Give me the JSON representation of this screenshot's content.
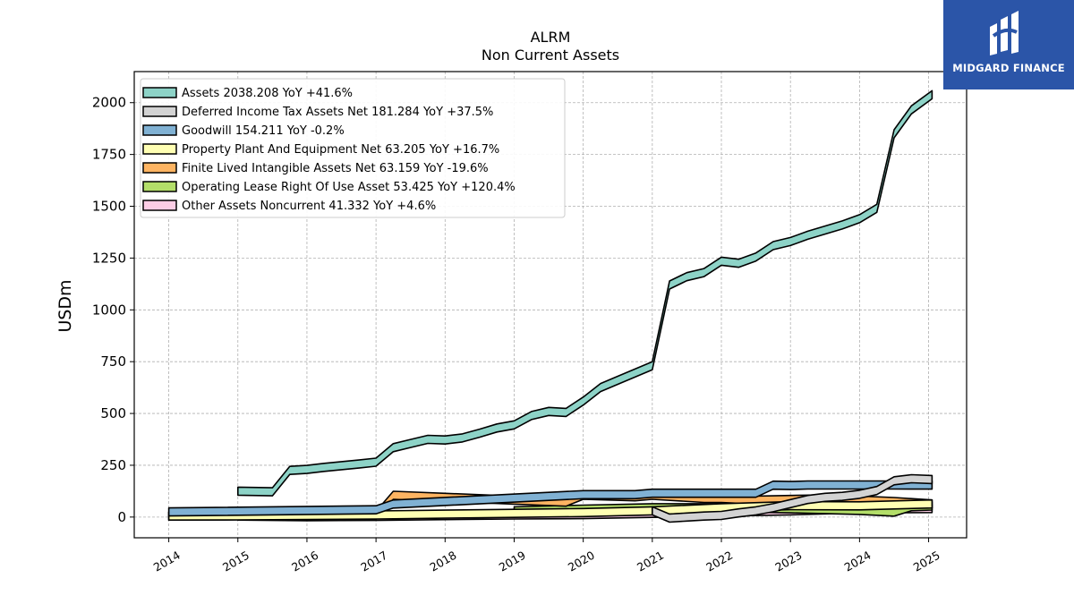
{
  "chart_data": {
    "type": "area",
    "title": "ALRM",
    "subtitle": "Non Current  Assets",
    "ylabel": "USDm",
    "xlabel": "",
    "ylim": [
      -100,
      2150
    ],
    "xlim": [
      2013.5,
      2025.55
    ],
    "yticks": [
      0,
      250,
      500,
      750,
      1000,
      1250,
      1500,
      1750,
      2000
    ],
    "xticks": [
      2014,
      2015,
      2016,
      2017,
      2018,
      2019,
      2020,
      2021,
      2022,
      2023,
      2024,
      2025
    ],
    "grid": true,
    "legend_position": "upper-left",
    "series": [
      {
        "name": "Assets",
        "legend": "Assets  2038.208 YoY +41.6%",
        "color": "#8dd3c7",
        "x": [
          2015.0,
          2015.5,
          2015.75,
          2016.0,
          2016.25,
          2016.5,
          2016.75,
          2017.0,
          2017.25,
          2017.5,
          2017.75,
          2018.0,
          2018.25,
          2018.5,
          2018.75,
          2019.0,
          2019.25,
          2019.5,
          2019.75,
          2020.0,
          2020.25,
          2020.5,
          2020.75,
          2021.0,
          2021.25,
          2021.5,
          2021.75,
          2022.0,
          2022.25,
          2022.5,
          2022.75,
          2023.0,
          2023.25,
          2023.5,
          2023.75,
          2024.0,
          2024.25,
          2024.5,
          2024.75,
          2025.05
        ],
        "y": [
          125,
          122,
          225,
          230,
          240,
          248,
          256,
          265,
          335,
          355,
          375,
          372,
          382,
          405,
          430,
          445,
          490,
          510,
          505,
          560,
          625,
          660,
          695,
          730,
          1120,
          1160,
          1180,
          1235,
          1225,
          1255,
          1310,
          1330,
          1360,
          1385,
          1410,
          1440,
          1490,
          1850,
          1965,
          2038.208
        ]
      },
      {
        "name": "Deferred Income Tax Assets Net",
        "legend": "Deferred Income Tax Assets Net  181.284 YoY +37.5%",
        "color": "#d3d3d3",
        "x": [
          2021.0,
          2021.25,
          2021.5,
          2021.75,
          2022.0,
          2022.25,
          2022.5,
          2022.75,
          2023.0,
          2023.25,
          2023.5,
          2023.75,
          2024.0,
          2024.25,
          2024.5,
          2024.75,
          2025.05
        ],
        "y": [
          30,
          -5,
          0,
          5,
          8,
          20,
          30,
          45,
          65,
          85,
          95,
          100,
          110,
          128,
          175,
          185,
          181.284
        ]
      },
      {
        "name": "Goodwill",
        "legend": "Goodwill  154.211 YoY -0.2%",
        "color": "#80b1d3",
        "x": [
          2014.0,
          2017.0,
          2017.25,
          2020.0,
          2020.75,
          2021.0,
          2021.5,
          2022.0,
          2022.5,
          2022.75,
          2023.0,
          2023.25,
          2023.5,
          2024.0,
          2024.5,
          2025.05
        ],
        "y": [
          25,
          35,
          63,
          108,
          108,
          115,
          115,
          115,
          115,
          154,
          152,
          155,
          155,
          155,
          155,
          154.211
        ]
      },
      {
        "name": "Property Plant And Equipment Net",
        "legend": "Property Plant And Equipment Net  63.205 YoY +16.7%",
        "color": "#ffffb3",
        "x": [
          2014.0,
          2015.0,
          2016.0,
          2017.0,
          2018.0,
          2019.0,
          2020.0,
          2021.0,
          2022.0,
          2023.0,
          2024.0,
          2025.05
        ],
        "y": [
          5,
          6,
          8,
          10,
          14,
          18,
          22,
          30,
          45,
          55,
          54,
          63.205
        ]
      },
      {
        "name": "Finite Lived Intangible Assets Net",
        "legend": "Finite Lived Intangible Assets Net  63.159 YoY -19.6%",
        "color": "#fdb462",
        "x": [
          2014.0,
          2017.0,
          2017.25,
          2018.0,
          2019.0,
          2019.75,
          2020.0,
          2020.75,
          2021.0,
          2021.75,
          2022.0,
          2022.5,
          2023.0,
          2023.5,
          2024.0,
          2024.5,
          2025.05
        ],
        "y": [
          5,
          8,
          105,
          95,
          82,
          72,
          105,
          98,
          105,
          90,
          90,
          82,
          85,
          88,
          82,
          75,
          63.159
        ]
      },
      {
        "name": "Operating Lease Right Of Use Asset",
        "legend": "Operating Lease Right Of Use Asset  53.425 YoY +120.4%",
        "color": "#b3de69",
        "x": [
          2019.0,
          2020.0,
          2021.0,
          2022.0,
          2022.5,
          2023.0,
          2024.0,
          2024.5,
          2024.75,
          2025.05
        ],
        "y": [
          30,
          38,
          45,
          45,
          42,
          40,
          32,
          24,
          50,
          53.425
        ]
      },
      {
        "name": "Other Assets Noncurrent",
        "legend": "Other Assets Noncurrent  41.332 YoY +4.6%",
        "color": "#fccde5",
        "x": [
          2015.0,
          2016.0,
          2017.0,
          2018.0,
          2019.0,
          2020.0,
          2021.0,
          2022.0,
          2023.0,
          2024.0,
          2025.05
        ],
        "y": [
          5,
          2,
          3,
          7,
          10,
          12,
          18,
          24,
          30,
          39,
          41.332
        ]
      }
    ]
  },
  "logo": {
    "brand": "MIDGARD FINANCE"
  }
}
